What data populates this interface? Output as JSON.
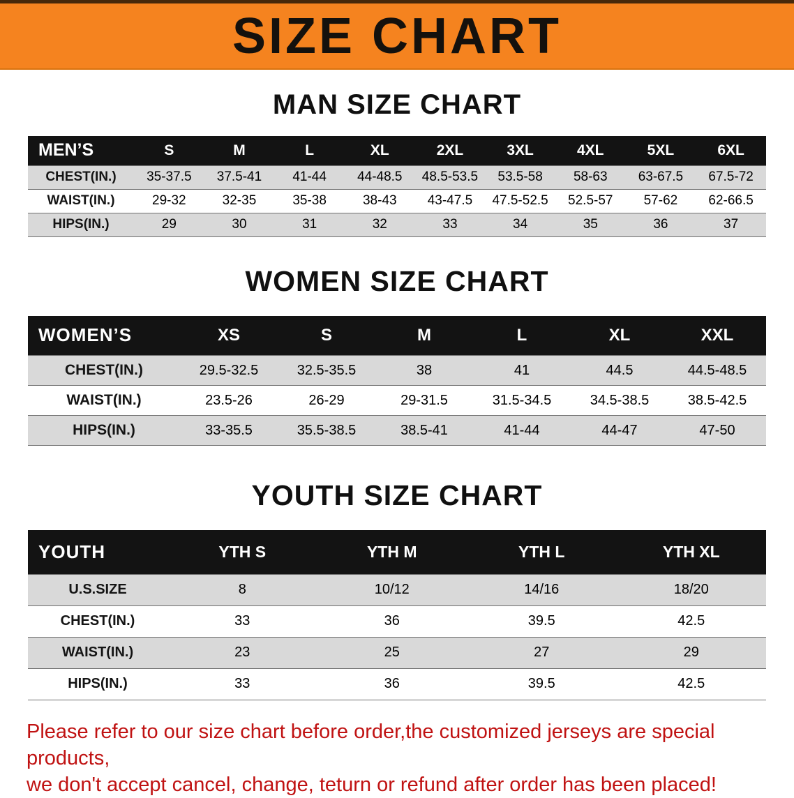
{
  "banner": {
    "title": "SIZE CHART",
    "bg_color": "#f5831f",
    "title_color": "#14110d"
  },
  "sections": [
    {
      "id": "men",
      "heading": "MAN SIZE CHART",
      "table": {
        "header": [
          "MEN’S",
          "S",
          "M",
          "L",
          "XL",
          "2XL",
          "3XL",
          "4XL",
          "5XL",
          "6XL"
        ],
        "rows": [
          {
            "label": "CHEST(IN.)",
            "values": [
              "35-37.5",
              "37.5-41",
              "41-44",
              "44-48.5",
              "48.5-53.5",
              "53.5-58",
              "58-63",
              "63-67.5",
              "67.5-72"
            ]
          },
          {
            "label": "WAIST(IN.)",
            "values": [
              "29-32",
              "32-35",
              "35-38",
              "38-43",
              "43-47.5",
              "47.5-52.5",
              "52.5-57",
              "57-62",
              "62-66.5"
            ]
          },
          {
            "label": "HIPS(IN.)",
            "values": [
              "29",
              "30",
              "31",
              "32",
              "33",
              "34",
              "35",
              "36",
              "37"
            ]
          }
        ]
      }
    },
    {
      "id": "women",
      "heading": "WOMEN SIZE CHART",
      "table": {
        "header": [
          "WOMEN’S",
          "XS",
          "S",
          "M",
          "L",
          "XL",
          "XXL"
        ],
        "rows": [
          {
            "label": "CHEST(IN.)",
            "values": [
              "29.5-32.5",
              "32.5-35.5",
              "38",
              "41",
              "44.5",
              "44.5-48.5"
            ]
          },
          {
            "label": "WAIST(IN.)",
            "values": [
              "23.5-26",
              "26-29",
              "29-31.5",
              "31.5-34.5",
              "34.5-38.5",
              "38.5-42.5"
            ]
          },
          {
            "label": "HIPS(IN.)",
            "values": [
              "33-35.5",
              "35.5-38.5",
              "38.5-41",
              "41-44",
              "44-47",
              "47-50"
            ]
          }
        ]
      }
    },
    {
      "id": "youth",
      "heading": "YOUTH SIZE CHART",
      "table": {
        "header": [
          "YOUTH",
          "YTH S",
          "YTH M",
          "YTH L",
          "YTH XL"
        ],
        "rows": [
          {
            "label": "U.S.SIZE",
            "values": [
              "8",
              "10/12",
              "14/16",
              "18/20"
            ]
          },
          {
            "label": "CHEST(IN.)",
            "values": [
              "33",
              "36",
              "39.5",
              "42.5"
            ]
          },
          {
            "label": "WAIST(IN.)",
            "values": [
              "23",
              "25",
              "27",
              "29"
            ]
          },
          {
            "label": "HIPS(IN.)",
            "values": [
              "33",
              "36",
              "39.5",
              "42.5"
            ]
          }
        ]
      }
    }
  ],
  "footer": {
    "lines": [
      "Please refer to our size chart before order,the customized jerseys are special products,",
      "we don't accept cancel, change, teturn or refund after order has been placed!"
    ],
    "text_color": "#c01212"
  },
  "colors": {
    "header_bar_bg": "#131313",
    "header_bar_text": "#ffffff",
    "shaded_row_bg": "#d9d9d9"
  }
}
